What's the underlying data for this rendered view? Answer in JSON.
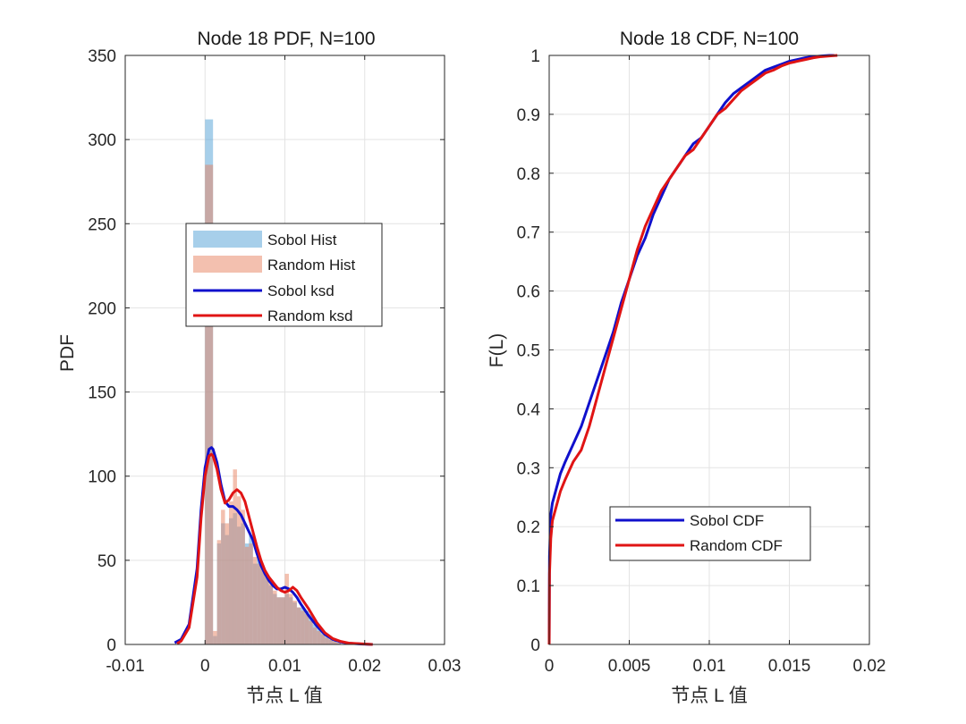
{
  "chart_data": [
    {
      "type": "bar",
      "title": "Node 18 PDF, N=100",
      "xlabel": "节点 L 值",
      "ylabel": "PDF",
      "xlim": [
        -0.01,
        0.03
      ],
      "ylim": [
        0,
        350
      ],
      "xticks": [
        -0.01,
        0,
        0.01,
        0.02,
        0.03
      ],
      "xtick_labels": [
        "-0.01",
        "0",
        "0.01",
        "0.02",
        "0.03"
      ],
      "yticks": [
        0,
        50,
        100,
        150,
        200,
        250,
        300,
        350
      ],
      "ytick_labels": [
        "0",
        "50",
        "100",
        "150",
        "200",
        "250",
        "300",
        "350"
      ],
      "grid": true,
      "legend_position": "center",
      "bin_edges": [
        0,
        0.001,
        0.0015,
        0.002,
        0.0025,
        0.003,
        0.0035,
        0.004,
        0.0045,
        0.005,
        0.0055,
        0.006,
        0.0065,
        0.007,
        0.0075,
        0.008,
        0.0085,
        0.009,
        0.0095,
        0.01,
        0.0105,
        0.011,
        0.0115,
        0.012,
        0.0125,
        0.013,
        0.0135,
        0.014,
        0.0145,
        0.015,
        0.0155,
        0.016,
        0.0165,
        0.017
      ],
      "series": [
        {
          "name": "Sobol Hist",
          "kind": "hist",
          "color": "#5fa7d8",
          "opacity": 0.55,
          "values": [
            312,
            5,
            60,
            72,
            65,
            75,
            78,
            70,
            72,
            60,
            65,
            48,
            52,
            45,
            40,
            35,
            30,
            28,
            28,
            30,
            28,
            25,
            22,
            22,
            20,
            18,
            12,
            10,
            8,
            5,
            3,
            2,
            1
          ]
        },
        {
          "name": "Random Hist",
          "kind": "hist",
          "color": "#e8825f",
          "opacity": 0.5,
          "values": [
            285,
            8,
            62,
            80,
            72,
            85,
            104,
            88,
            80,
            58,
            60,
            52,
            48,
            45,
            40,
            36,
            32,
            28,
            28,
            42,
            30,
            26,
            22,
            20,
            18,
            14,
            10,
            8,
            6,
            4,
            3,
            2,
            1
          ]
        },
        {
          "name": "Sobol ksd",
          "kind": "line",
          "color": "#1010cc",
          "x": [
            -0.0038,
            -0.003,
            -0.002,
            -0.001,
            -0.0005,
            0,
            0.0005,
            0.0008,
            0.001,
            0.0015,
            0.002,
            0.0025,
            0.003,
            0.0035,
            0.004,
            0.0045,
            0.005,
            0.0055,
            0.006,
            0.0065,
            0.007,
            0.0075,
            0.008,
            0.0085,
            0.009,
            0.0095,
            0.01,
            0.0105,
            0.011,
            0.0115,
            0.012,
            0.013,
            0.014,
            0.015,
            0.016,
            0.017,
            0.018,
            0.0195,
            0.021
          ],
          "y": [
            1,
            3,
            12,
            45,
            80,
            105,
            116,
            117,
            116,
            108,
            95,
            85,
            82,
            82,
            80,
            77,
            72,
            67,
            62,
            54,
            47,
            42,
            38,
            35,
            33,
            33,
            34,
            33,
            31,
            28,
            24,
            17,
            11,
            6,
            3,
            1.5,
            0.7,
            0.3,
            0
          ]
        },
        {
          "name": "Random ksd",
          "kind": "line",
          "color": "#e01414",
          "x": [
            -0.0035,
            -0.003,
            -0.002,
            -0.001,
            -0.0005,
            0,
            0.0005,
            0.0008,
            0.001,
            0.0015,
            0.002,
            0.0025,
            0.003,
            0.0035,
            0.004,
            0.0045,
            0.005,
            0.0055,
            0.006,
            0.0065,
            0.007,
            0.0075,
            0.008,
            0.0085,
            0.009,
            0.0095,
            0.01,
            0.0105,
            0.011,
            0.0115,
            0.012,
            0.013,
            0.014,
            0.015,
            0.016,
            0.017,
            0.018,
            0.0195,
            0.021
          ],
          "y": [
            0.5,
            2,
            10,
            40,
            75,
            100,
            112,
            113,
            112,
            104,
            92,
            84,
            86,
            90,
            92,
            90,
            85,
            76,
            67,
            58,
            50,
            44,
            40,
            37,
            34,
            32,
            31,
            32,
            34,
            32,
            28,
            21,
            13,
            7,
            3.5,
            1.8,
            0.8,
            0.4,
            0
          ]
        }
      ]
    },
    {
      "type": "line",
      "title": "Node 18 CDF, N=100",
      "xlabel": "节点 L 值",
      "ylabel": "F(L)",
      "xlim": [
        0,
        0.02
      ],
      "ylim": [
        0,
        1
      ],
      "xticks": [
        0,
        0.005,
        0.01,
        0.015,
        0.02
      ],
      "xtick_labels": [
        "0",
        "0.005",
        "0.01",
        "0.015",
        "0.02"
      ],
      "yticks": [
        0,
        0.1,
        0.2,
        0.3,
        0.4,
        0.5,
        0.6,
        0.7,
        0.8,
        0.9,
        1
      ],
      "ytick_labels": [
        "0",
        "0.1",
        "0.2",
        "0.3",
        "0.4",
        "0.5",
        "0.6",
        "0.7",
        "0.8",
        "0.9",
        "1"
      ],
      "grid": true,
      "legend_position": "bottom-center",
      "series": [
        {
          "name": "Sobol CDF",
          "color": "#1010cc",
          "x": [
            0,
            2e-05,
            0.0001,
            0.0002,
            0.0004,
            0.0007,
            0.001,
            0.0015,
            0.002,
            0.0025,
            0.003,
            0.0035,
            0.004,
            0.0045,
            0.005,
            0.0055,
            0.006,
            0.0065,
            0.007,
            0.0075,
            0.008,
            0.0085,
            0.009,
            0.0095,
            0.01,
            0.0105,
            0.011,
            0.0115,
            0.012,
            0.0125,
            0.013,
            0.0135,
            0.014,
            0.0145,
            0.015,
            0.0155,
            0.016,
            0.0165,
            0.017,
            0.0175,
            0.0178
          ],
          "y": [
            0,
            0.15,
            0.22,
            0.24,
            0.26,
            0.29,
            0.31,
            0.34,
            0.37,
            0.41,
            0.45,
            0.49,
            0.53,
            0.58,
            0.62,
            0.66,
            0.69,
            0.73,
            0.76,
            0.79,
            0.81,
            0.83,
            0.85,
            0.86,
            0.88,
            0.9,
            0.92,
            0.935,
            0.945,
            0.955,
            0.965,
            0.975,
            0.98,
            0.985,
            0.99,
            0.993,
            0.996,
            0.998,
            0.999,
            1,
            1
          ]
        },
        {
          "name": "Random CDF",
          "color": "#e01414",
          "x": [
            0,
            2e-05,
            0.0001,
            0.0002,
            0.0004,
            0.0007,
            0.001,
            0.0015,
            0.002,
            0.0025,
            0.003,
            0.0035,
            0.004,
            0.0045,
            0.005,
            0.0055,
            0.006,
            0.0065,
            0.007,
            0.0075,
            0.008,
            0.0085,
            0.009,
            0.0095,
            0.01,
            0.0105,
            0.011,
            0.0115,
            0.012,
            0.0125,
            0.013,
            0.0135,
            0.014,
            0.0145,
            0.015,
            0.0155,
            0.016,
            0.0165,
            0.017,
            0.0175,
            0.018
          ],
          "y": [
            0,
            0.12,
            0.18,
            0.21,
            0.23,
            0.26,
            0.28,
            0.31,
            0.33,
            0.37,
            0.42,
            0.47,
            0.52,
            0.57,
            0.62,
            0.67,
            0.71,
            0.74,
            0.77,
            0.79,
            0.81,
            0.83,
            0.84,
            0.86,
            0.88,
            0.9,
            0.91,
            0.925,
            0.94,
            0.95,
            0.96,
            0.97,
            0.975,
            0.982,
            0.987,
            0.99,
            0.993,
            0.996,
            0.998,
            0.999,
            1
          ]
        }
      ]
    }
  ]
}
